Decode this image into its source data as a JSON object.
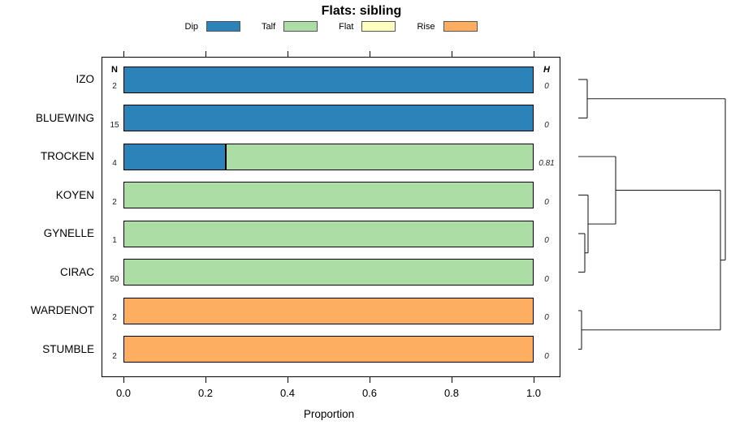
{
  "title": "Flats: sibling",
  "legend": {
    "items": [
      {
        "label": "Dip",
        "color": "#2B83BA"
      },
      {
        "label": "Talf",
        "color": "#ABDDA4"
      },
      {
        "label": "Flat",
        "color": "#FFFFBF"
      },
      {
        "label": "Rise",
        "color": "#FDAE61"
      }
    ]
  },
  "columns": {
    "n_header": "N",
    "h_header": "H"
  },
  "axis": {
    "label": "Proportion",
    "ticks": [
      "0.0",
      "0.2",
      "0.4",
      "0.6",
      "0.8",
      "1.0"
    ],
    "range": [
      0,
      1
    ]
  },
  "chart_data": {
    "type": "bar",
    "orientation": "horizontal",
    "stacked": true,
    "title": "Flats: sibling",
    "xlabel": "Proportion",
    "xlim": [
      0,
      1
    ],
    "grid": false,
    "legend_position": "top",
    "categories": [
      "IZO",
      "BLUEWING",
      "TROCKEN",
      "KOYEN",
      "GYNELLE",
      "CIRAC",
      "WARDENOT",
      "STUMBLE"
    ],
    "series": [
      {
        "name": "Dip",
        "color": "#2B83BA",
        "values": [
          1,
          1,
          0.25,
          0,
          0,
          0,
          0,
          0
        ]
      },
      {
        "name": "Talf",
        "color": "#ABDDA4",
        "values": [
          0,
          0,
          0.75,
          1,
          1,
          1,
          0,
          0
        ]
      },
      {
        "name": "Flat",
        "color": "#FFFFBF",
        "values": [
          0,
          0,
          0,
          0,
          0,
          0,
          0,
          0
        ]
      },
      {
        "name": "Rise",
        "color": "#FDAE61",
        "values": [
          0,
          0,
          0,
          0,
          0,
          0,
          1,
          1
        ]
      }
    ],
    "n_values": [
      "2",
      "15",
      "4",
      "2",
      "1",
      "50",
      "2",
      "2"
    ],
    "h_values": [
      "0",
      "0",
      "0.81",
      "0",
      "0",
      "0",
      "0",
      "0"
    ],
    "dendrogram": {
      "leaves": [
        "IZO",
        "BLUEWING",
        "TROCKEN",
        "KOYEN",
        "GYNELLE",
        "CIRAC",
        "WARDENOT",
        "STUMBLE"
      ],
      "leaf_stub_x": 22,
      "merges": [
        {
          "id": "m1",
          "a": "IZO",
          "b": "BLUEWING",
          "x": 33
        },
        {
          "id": "m2",
          "a": "GYNELLE",
          "b": "CIRAC",
          "x": 30
        },
        {
          "id": "m3",
          "a": "KOYEN",
          "b": "m2",
          "x": 34
        },
        {
          "id": "m4",
          "a": "TROCKEN",
          "b": "m3",
          "x": 68
        },
        {
          "id": "m5",
          "a": "WARDENOT",
          "b": "STUMBLE",
          "x": 26
        },
        {
          "id": "m6",
          "a": "m4",
          "b": "m5",
          "x": 197
        },
        {
          "id": "m7",
          "a": "m1",
          "b": "m6",
          "x": 203
        }
      ]
    }
  }
}
